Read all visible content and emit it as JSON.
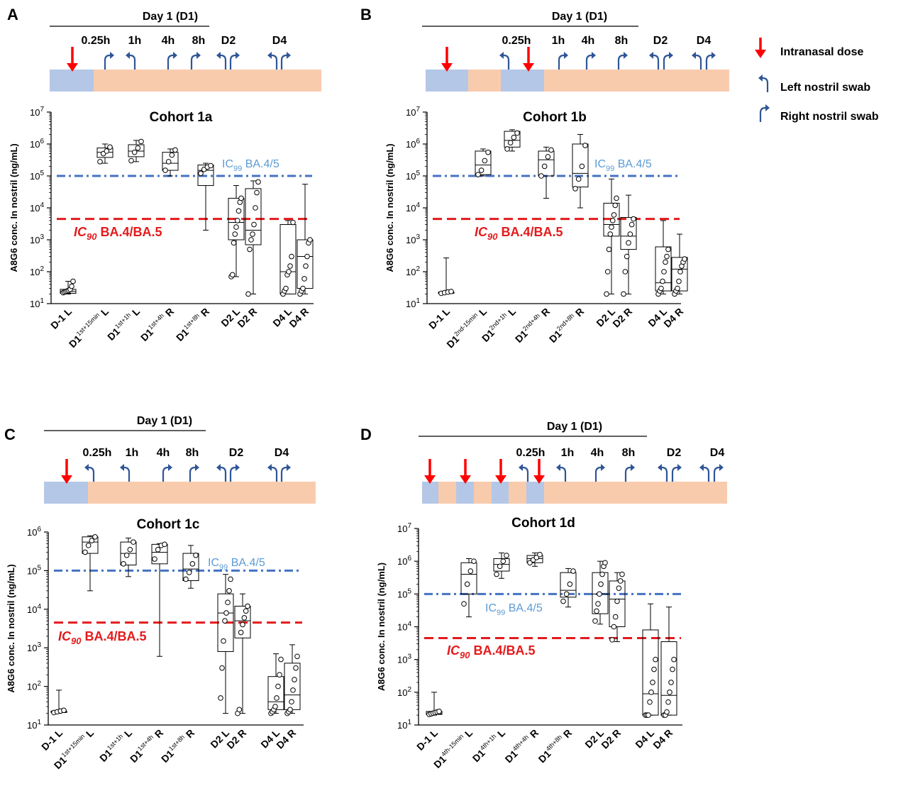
{
  "legend": {
    "items": [
      {
        "icon": "red-down-arrow-icon",
        "label": "Intranasal dose"
      },
      {
        "icon": "left-swab-arrow-icon",
        "label": "Left nostril swab"
      },
      {
        "icon": "right-swab-arrow-icon",
        "label": "Right nostril swab"
      }
    ]
  },
  "colors": {
    "dose": "#ff0000",
    "swab": "#2f5597",
    "ic99": "#4472c4",
    "ic90": "#e31a1c",
    "dosing_band": "#b4c7e7",
    "followup_band": "#f8cbad"
  },
  "chart_data": [
    {
      "panel": "A",
      "type": "box",
      "title": "Cohort 1a",
      "header": "Day 1 (D1)",
      "timeline": {
        "times": [
          "0.25h",
          "1h",
          "4h",
          "8h",
          "D2",
          "D4"
        ],
        "doses": 1
      },
      "ylabel": "A8G6 conc. In nostril (ng/mL)",
      "yscale": "log",
      "ylim": [
        10,
        10000000
      ],
      "ticks": [
        {
          "b": "10",
          "e": "1"
        },
        {
          "b": "10",
          "e": "2"
        },
        {
          "b": "10",
          "e": "3"
        },
        {
          "b": "10",
          "e": "4"
        },
        {
          "b": "10",
          "e": "5"
        },
        {
          "b": "10",
          "e": "6"
        },
        {
          "b": "10",
          "e": "7"
        }
      ],
      "lines": {
        "ic99": {
          "value": 100000,
          "label_pre": "IC",
          "label_sub": "99",
          "label_post": " BA.4/5"
        },
        "ic90": {
          "value": 4500,
          "label_pre": "IC",
          "label_sub": "90",
          "label_post": " BA.4/BA.5"
        }
      },
      "categories": [
        {
          "pre": "D-1",
          "sup": "",
          "post": " L"
        },
        {
          "pre": "D1",
          "sup": "1st+15min",
          "post": " L"
        },
        {
          "pre": "D1",
          "sup": "1st+1h",
          "post": " L"
        },
        {
          "pre": "D1",
          "sup": "1st+4h",
          "post": " R"
        },
        {
          "pre": "D1",
          "sup": "1st+8h",
          "post": " R"
        },
        {
          "pre": "D2 L",
          "sup": "",
          "post": ""
        },
        {
          "pre": "D2 R",
          "sup": "",
          "post": ""
        },
        {
          "pre": "D4 L",
          "sup": "",
          "post": ""
        },
        {
          "pre": "D4 R",
          "sup": "",
          "post": ""
        }
      ],
      "boxes": [
        {
          "min": 20,
          "q1": 21,
          "median": 24,
          "q3": 28,
          "max": 50,
          "points": [
            22,
            23,
            24,
            25,
            26,
            28,
            35,
            50
          ]
        },
        {
          "min": 250000,
          "q1": 380000,
          "median": 550000,
          "q3": 750000,
          "max": 1000000,
          "points": [
            280000,
            500000,
            600000,
            800000
          ]
        },
        {
          "min": 280000,
          "q1": 400000,
          "median": 600000,
          "q3": 950000,
          "max": 1300000,
          "points": [
            300000,
            550000,
            750000,
            1200000
          ]
        },
        {
          "min": 100000,
          "q1": 150000,
          "median": 250000,
          "q3": 550000,
          "max": 700000,
          "points": [
            150000,
            280000,
            450000,
            650000
          ]
        },
        {
          "min": 2000,
          "q1": 50000,
          "median": 150000,
          "q3": 220000,
          "max": 250000,
          "points": [
            120000,
            160000,
            190000,
            210000
          ]
        },
        {
          "min": 70,
          "q1": 1000,
          "median": 3500,
          "q3": 20000,
          "max": 50000,
          "points": [
            70,
            80,
            800,
            1500,
            2500,
            4000,
            8000,
            15000,
            20000
          ]
        },
        {
          "min": 20,
          "q1": 700,
          "median": 2000,
          "q3": 40000,
          "max": 70000,
          "points": [
            20,
            500,
            1000,
            1500,
            3000,
            10000,
            30000,
            65000
          ]
        },
        {
          "min": 20,
          "q1": 20,
          "median": 100,
          "q3": 3000,
          "max": 4000,
          "points": [
            20,
            25,
            30,
            80,
            100,
            150,
            300,
            3500
          ]
        },
        {
          "min": 20,
          "q1": 30,
          "median": 300,
          "q3": 1000,
          "max": 55000,
          "points": [
            20,
            25,
            30,
            60,
            150,
            300,
            800,
            1000
          ]
        }
      ]
    },
    {
      "panel": "B",
      "type": "box",
      "title": "Cohort 1b",
      "header": "Day 1 (D1)",
      "timeline": {
        "times": [
          "0.25h",
          "1h",
          "4h",
          "8h",
          "D2",
          "D4"
        ],
        "doses": 2
      },
      "ylabel": "A8G6 conc. In nostril (ng/mL)",
      "yscale": "log",
      "ylim": [
        10,
        10000000
      ],
      "ticks": [
        {
          "b": "10",
          "e": "1"
        },
        {
          "b": "10",
          "e": "2"
        },
        {
          "b": "10",
          "e": "3"
        },
        {
          "b": "10",
          "e": "4"
        },
        {
          "b": "10",
          "e": "5"
        },
        {
          "b": "10",
          "e": "6"
        },
        {
          "b": "10",
          "e": "7"
        }
      ],
      "lines": {
        "ic99": {
          "value": 100000,
          "label_pre": "IC",
          "label_sub": "99",
          "label_post": " BA.4/5"
        },
        "ic90": {
          "value": 4500,
          "label_pre": "IC",
          "label_sub": "90",
          "label_post": " BA.4/BA.5"
        }
      },
      "categories": [
        {
          "pre": "D-1",
          "sup": "",
          "post": " L"
        },
        {
          "pre": "D1",
          "sup": "2nd-15min",
          "post": " L"
        },
        {
          "pre": "D1",
          "sup": "2nd+1h",
          "post": " L"
        },
        {
          "pre": "D1",
          "sup": "2nd+4h",
          "post": " R"
        },
        {
          "pre": "D1",
          "sup": "2nd+8h",
          "post": " R"
        },
        {
          "pre": "D2 L",
          "sup": "",
          "post": ""
        },
        {
          "pre": "D2 R",
          "sup": "",
          "post": ""
        },
        {
          "pre": "D4 L",
          "sup": "",
          "post": ""
        },
        {
          "pre": "D4 R",
          "sup": "",
          "post": ""
        }
      ],
      "boxes": [
        {
          "min": 20,
          "q1": 21,
          "median": 22,
          "q3": 23,
          "max": 270,
          "points": [
            21,
            22,
            23,
            24
          ]
        },
        {
          "min": 100000,
          "q1": 110000,
          "median": 220000,
          "q3": 600000,
          "max": 700000,
          "points": [
            110000,
            150000,
            300000,
            550000
          ]
        },
        {
          "min": 600000,
          "q1": 800000,
          "median": 1300000,
          "q3": 2500000,
          "max": 2800000,
          "points": [
            700000,
            1100000,
            1600000,
            2200000
          ]
        },
        {
          "min": 20000,
          "q1": 100000,
          "median": 320000,
          "q3": 600000,
          "max": 800000,
          "points": [
            100000,
            200000,
            400000,
            650000
          ]
        },
        {
          "min": 10000,
          "q1": 45000,
          "median": 120000,
          "q3": 1000000,
          "max": 2000000,
          "points": [
            40000,
            80000,
            200000,
            900000
          ]
        },
        {
          "min": 20,
          "q1": 1300,
          "median": 3000,
          "q3": 14000,
          "max": 80000,
          "points": [
            20,
            100,
            500,
            1500,
            2500,
            4000,
            6000,
            12000,
            20000
          ]
        },
        {
          "min": 20,
          "q1": 500,
          "median": 1300,
          "q3": 5000,
          "max": 25000,
          "points": [
            20,
            100,
            300,
            800,
            1500,
            3000,
            4500
          ]
        },
        {
          "min": 20,
          "q1": 25,
          "median": 45,
          "q3": 600,
          "max": 4000,
          "points": [
            20,
            25,
            30,
            50,
            100,
            200,
            300,
            500
          ]
        },
        {
          "min": 20,
          "q1": 25,
          "median": 120,
          "q3": 280,
          "max": 1500,
          "points": [
            20,
            25,
            30,
            50,
            100,
            150,
            200,
            250
          ]
        }
      ]
    },
    {
      "panel": "C",
      "type": "box",
      "title": "Cohort 1c",
      "header": "Day 1 (D1)",
      "timeline": {
        "times": [
          "0.25h",
          "1h",
          "4h",
          "8h",
          "D2",
          "D4"
        ],
        "doses": 1
      },
      "ylabel": "A8G6 conc. In nostril (ng/mL)",
      "yscale": "log",
      "ylim": [
        10,
        1000000
      ],
      "ticks": [
        {
          "b": "10",
          "e": "1"
        },
        {
          "b": "10",
          "e": "2"
        },
        {
          "b": "10",
          "e": "3"
        },
        {
          "b": "10",
          "e": "4"
        },
        {
          "b": "10",
          "e": "5"
        },
        {
          "b": "10",
          "e": "6"
        }
      ],
      "lines": {
        "ic99": {
          "value": 100000,
          "label_pre": "IC",
          "label_sub": "99",
          "label_post": " BA.4/5"
        },
        "ic90": {
          "value": 4500,
          "label_pre": "IC",
          "label_sub": "90",
          "label_post": " BA.4/BA.5"
        }
      },
      "categories": [
        {
          "pre": "D-1",
          "sup": "",
          "post": " L"
        },
        {
          "pre": "D1",
          "sup": "1st+15min",
          "post": " L"
        },
        {
          "pre": "D1",
          "sup": "1st+1h",
          "post": " L"
        },
        {
          "pre": "D1",
          "sup": "1st+4h",
          "post": " R"
        },
        {
          "pre": "D1",
          "sup": "1st+8h",
          "post": " R"
        },
        {
          "pre": "D2 L",
          "sup": "",
          "post": ""
        },
        {
          "pre": "D2 R",
          "sup": "",
          "post": ""
        },
        {
          "pre": "D4 L",
          "sup": "",
          "post": ""
        },
        {
          "pre": "D4 R",
          "sup": "",
          "post": ""
        }
      ],
      "boxes": [
        {
          "min": 20,
          "q1": 21,
          "median": 22,
          "q3": 23,
          "max": 80,
          "points": [
            21,
            22,
            23,
            24
          ]
        },
        {
          "min": 30000,
          "q1": 280000,
          "median": 550000,
          "q3": 750000,
          "max": 800000,
          "points": [
            300000,
            450000,
            600000,
            750000
          ]
        },
        {
          "min": 70000,
          "q1": 140000,
          "median": 280000,
          "q3": 550000,
          "max": 700000,
          "points": [
            150000,
            250000,
            350000,
            550000
          ]
        },
        {
          "min": 600,
          "q1": 150000,
          "median": 300000,
          "q3": 480000,
          "max": 500000,
          "points": [
            200000,
            350000,
            450000,
            480000
          ]
        },
        {
          "min": 35000,
          "q1": 55000,
          "median": 110000,
          "q3": 280000,
          "max": 450000,
          "points": [
            60000,
            90000,
            150000,
            250000
          ]
        },
        {
          "min": 20,
          "q1": 800,
          "median": 8000,
          "q3": 25000,
          "max": 80000,
          "points": [
            50,
            300,
            1500,
            5000,
            8000,
            15000,
            30000,
            60000
          ]
        },
        {
          "min": 20,
          "q1": 1800,
          "median": 5000,
          "q3": 12000,
          "max": 25000,
          "points": [
            20,
            25,
            2500,
            4000,
            6000,
            9000,
            12000
          ]
        },
        {
          "min": 20,
          "q1": 25,
          "median": 40,
          "q3": 180,
          "max": 700,
          "points": [
            20,
            22,
            25,
            30,
            50,
            100,
            200,
            500
          ]
        },
        {
          "min": 20,
          "q1": 25,
          "median": 60,
          "q3": 400,
          "max": 1200,
          "points": [
            20,
            22,
            25,
            40,
            80,
            150,
            300,
            600
          ]
        }
      ]
    },
    {
      "panel": "D",
      "type": "box",
      "title": "Cohort 1d",
      "header": "Day 1 (D1)",
      "timeline": {
        "times": [
          "0.25h",
          "1h",
          "4h",
          "8h",
          "D2",
          "D4"
        ],
        "doses": 4
      },
      "ylabel": "A8G6 conc. In nostril (ng/mL)",
      "yscale": "log",
      "ylim": [
        10,
        10000000
      ],
      "ticks": [
        {
          "b": "10",
          "e": "1"
        },
        {
          "b": "10",
          "e": "2"
        },
        {
          "b": "10",
          "e": "3"
        },
        {
          "b": "10",
          "e": "4"
        },
        {
          "b": "10",
          "e": "5"
        },
        {
          "b": "10",
          "e": "6"
        },
        {
          "b": "10",
          "e": "7"
        }
      ],
      "lines": {
        "ic99": {
          "value": 100000,
          "label_pre": "IC",
          "label_sub": "99",
          "label_post": " BA.4/5"
        },
        "ic90": {
          "value": 4500,
          "label_pre": "IC",
          "label_sub": "90",
          "label_post": " BA.4/BA.5"
        }
      },
      "categories": [
        {
          "pre": "D-1",
          "sup": "",
          "post": " L"
        },
        {
          "pre": "D1",
          "sup": "4th-15min",
          "post": " L"
        },
        {
          "pre": "D1",
          "sup": "4th+1h",
          "post": " L"
        },
        {
          "pre": "D1",
          "sup": "4th+4h",
          "post": " R"
        },
        {
          "pre": "D1",
          "sup": "4th+8h",
          "post": " R"
        },
        {
          "pre": "D2 L",
          "sup": "",
          "post": ""
        },
        {
          "pre": "D2 R",
          "sup": "",
          "post": ""
        },
        {
          "pre": "D4 L",
          "sup": "",
          "post": ""
        },
        {
          "pre": "D4 R",
          "sup": "",
          "post": ""
        }
      ],
      "boxes": [
        {
          "min": 20,
          "q1": 21,
          "median": 22,
          "q3": 26,
          "max": 100,
          "points": [
            21,
            22,
            23,
            24,
            25,
            26
          ]
        },
        {
          "min": 20000,
          "q1": 100000,
          "median": 400000,
          "q3": 900000,
          "max": 1200000,
          "points": [
            50000,
            200000,
            500000,
            1000000
          ]
        },
        {
          "min": 300000,
          "q1": 500000,
          "median": 800000,
          "q3": 1200000,
          "max": 1800000,
          "points": [
            400000,
            700000,
            1000000,
            1500000
          ]
        },
        {
          "min": 700000,
          "q1": 900000,
          "median": 1200000,
          "q3": 1500000,
          "max": 1800000,
          "points": [
            900000,
            1100000,
            1300000,
            1600000
          ]
        },
        {
          "min": 40000,
          "q1": 80000,
          "median": 130000,
          "q3": 450000,
          "max": 600000,
          "points": [
            60000,
            100000,
            200000,
            500000
          ]
        },
        {
          "min": 12000,
          "q1": 25000,
          "median": 100000,
          "q3": 450000,
          "max": 1000000,
          "points": [
            15000,
            30000,
            50000,
            100000,
            200000,
            400000,
            700000,
            900000
          ]
        },
        {
          "min": 3500,
          "q1": 10000,
          "median": 70000,
          "q3": 250000,
          "max": 450000,
          "points": [
            4000,
            10000,
            20000,
            60000,
            150000,
            250000,
            400000
          ]
        },
        {
          "min": 20,
          "q1": 20,
          "median": 90,
          "q3": 8000,
          "max": 50000,
          "points": [
            20,
            20,
            20,
            50,
            100,
            200,
            500,
            1000
          ]
        },
        {
          "min": 20,
          "q1": 20,
          "median": 80,
          "q3": 3500,
          "max": 40000,
          "points": [
            20,
            20,
            25,
            50,
            100,
            200,
            500,
            1000
          ]
        }
      ]
    }
  ]
}
